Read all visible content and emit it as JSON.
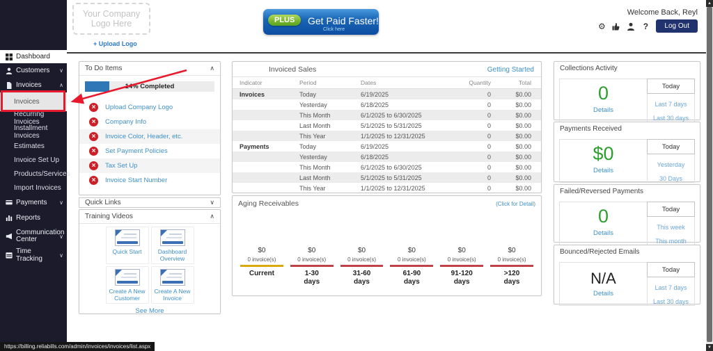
{
  "colors": {
    "sidebar_bg": "#1b1b2b",
    "accent_blue": "#3e90c8",
    "green": "#2e9e30",
    "alert_red": "#cb2027",
    "annotation_red": "#e8192c",
    "navy_button": "#20336e",
    "progress_blue": "#2f77b5",
    "aging_yellow": "#d9a90c",
    "aging_red": "#bf4346"
  },
  "page": {
    "url_tooltip": "https://billing.reliabills.com/admin/invoices/invoices/list.aspx"
  },
  "header": {
    "logo_placeholder": "Your Company Logo Here",
    "upload_logo": "+ Upload Logo",
    "banner": {
      "badge": "PLUS",
      "title": "Get Paid Faster!",
      "subtitle": "Click here"
    },
    "welcome": "Welcome Back, Reyl",
    "help": "?",
    "logout": "Log Out"
  },
  "sidebar": {
    "items": [
      {
        "label": "Dashboard"
      },
      {
        "label": "Customers"
      },
      {
        "label": "Invoices"
      },
      {
        "label": "Invoices"
      },
      {
        "label": "Recurring Invoices"
      },
      {
        "label": "Installment Invoices"
      },
      {
        "label": "Estimates"
      },
      {
        "label": "Invoice Set Up"
      },
      {
        "label": "Products/Services"
      },
      {
        "label": "Import Invoices"
      },
      {
        "label": "Payments"
      },
      {
        "label": "Reports"
      },
      {
        "label": "Communication Center"
      },
      {
        "label": "Time Tracking"
      }
    ]
  },
  "todo": {
    "title": "To Do Items",
    "progress_label": "14% Completed",
    "progress_pct": 14,
    "items": [
      "Upload Company Logo",
      "Company Info",
      "Invoice Color, Header, etc.",
      "Set Payment Policies",
      "Tax Set Up",
      "Invoice Start Number"
    ]
  },
  "quick_links": {
    "title": "Quick Links"
  },
  "training": {
    "title": "Training Videos",
    "videos": [
      "Quick Start",
      "Dashboard Overview",
      "Create A New Customer",
      "Create A New Invoice"
    ],
    "see_more": "See More"
  },
  "invoiced_sales": {
    "title": "Invoiced Sales",
    "link": "Getting Started",
    "columns": [
      "Indicator",
      "Period",
      "Dates",
      "Quantity",
      "Total"
    ],
    "rows": [
      [
        "Invoices",
        "Today",
        "6/19/2025",
        "0",
        "$0.00"
      ],
      [
        "",
        "Yesterday",
        "6/18/2025",
        "0",
        "$0.00"
      ],
      [
        "",
        "This Month",
        "6/1/2025 to 6/30/2025",
        "0",
        "$0.00"
      ],
      [
        "",
        "Last Month",
        "5/1/2025 to 5/31/2025",
        "0",
        "$0.00"
      ],
      [
        "",
        "This Year",
        "1/1/2025 to 12/31/2025",
        "0",
        "$0.00"
      ],
      [
        "Payments",
        "Today",
        "6/19/2025",
        "0",
        "$0.00"
      ],
      [
        "",
        "Yesterday",
        "6/18/2025",
        "0",
        "$0.00"
      ],
      [
        "",
        "This Month",
        "6/1/2025 to 6/30/2025",
        "0",
        "$0.00"
      ],
      [
        "",
        "Last Month",
        "5/1/2025 to 5/31/2025",
        "0",
        "$0.00"
      ],
      [
        "",
        "This Year",
        "1/1/2025 to 12/31/2025",
        "0",
        "$0.00"
      ]
    ]
  },
  "aging": {
    "title": "Aging Receivables",
    "link": "(Click for Detail)",
    "buckets": [
      {
        "amount": "$0",
        "count": "0 invoice(s)",
        "l1": "Current",
        "l2": ""
      },
      {
        "amount": "$0",
        "count": "0 invoice(s)",
        "l1": "1-30",
        "l2": "days"
      },
      {
        "amount": "$0",
        "count": "0 invoice(s)",
        "l1": "31-60",
        "l2": "days"
      },
      {
        "amount": "$0",
        "count": "0 invoice(s)",
        "l1": "61-90",
        "l2": "days"
      },
      {
        "amount": "$0",
        "count": "0 invoice(s)",
        "l1": "91-120",
        "l2": "days"
      },
      {
        "amount": "$0",
        "count": "0 invoice(s)",
        "l1": ">120",
        "l2": "days"
      }
    ]
  },
  "stats": [
    {
      "title": "Collections Activity",
      "value": "0",
      "details": "Details",
      "today": "Today",
      "links": [
        "Last 7 days",
        "Last 30 days"
      ]
    },
    {
      "title": "Payments Received",
      "value": "$0",
      "details": "Details",
      "today": "Today",
      "links": [
        "Yesterday",
        "30 Days"
      ]
    },
    {
      "title": "Failed/Reversed Payments",
      "value": "0",
      "details": "Details",
      "today": "Today",
      "links": [
        "This week",
        "This month"
      ]
    },
    {
      "title": "Bounced/Rejected Emails",
      "value": "N/A",
      "details": "Details",
      "today": "Today",
      "links": [
        "Last 7 days",
        "Last 30 days"
      ]
    }
  ]
}
